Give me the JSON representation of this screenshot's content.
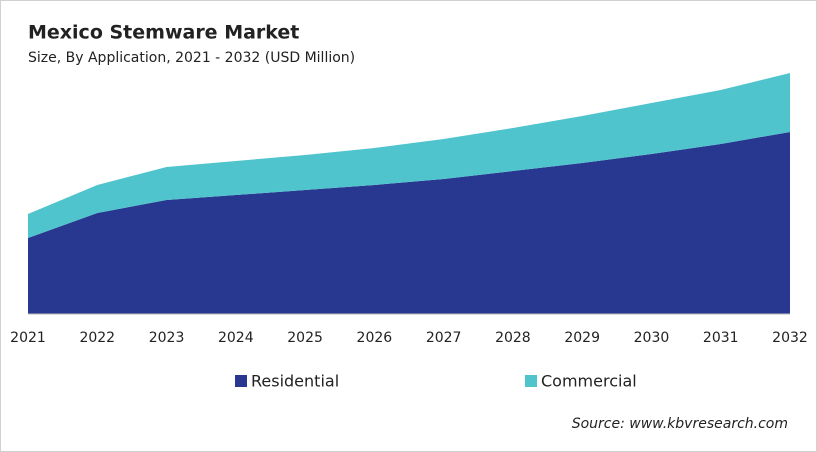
{
  "chart_data": {
    "type": "stacked-area",
    "title": "Mexico Stemware Market",
    "subtitle": "Size, By Application, 2021 - 2032 (USD Million)",
    "categories": [
      "2021",
      "2022",
      "2023",
      "2024",
      "2025",
      "2026",
      "2027",
      "2028",
      "2029",
      "2030",
      "2031",
      "2032"
    ],
    "series": [
      {
        "name": "Residential",
        "color": "#283891",
        "values": [
          76,
          101,
          114,
          119,
          124,
          129,
          135,
          143,
          151,
          160,
          170,
          182
        ]
      },
      {
        "name": "Commercial",
        "color": "#4fc4cc",
        "values": [
          24,
          28,
          33,
          34,
          35,
          37,
          40,
          43,
          47,
          51,
          54,
          59
        ]
      }
    ],
    "ylim": [
      0,
      241
    ],
    "source": "Source: www.kbvresearch.com"
  }
}
